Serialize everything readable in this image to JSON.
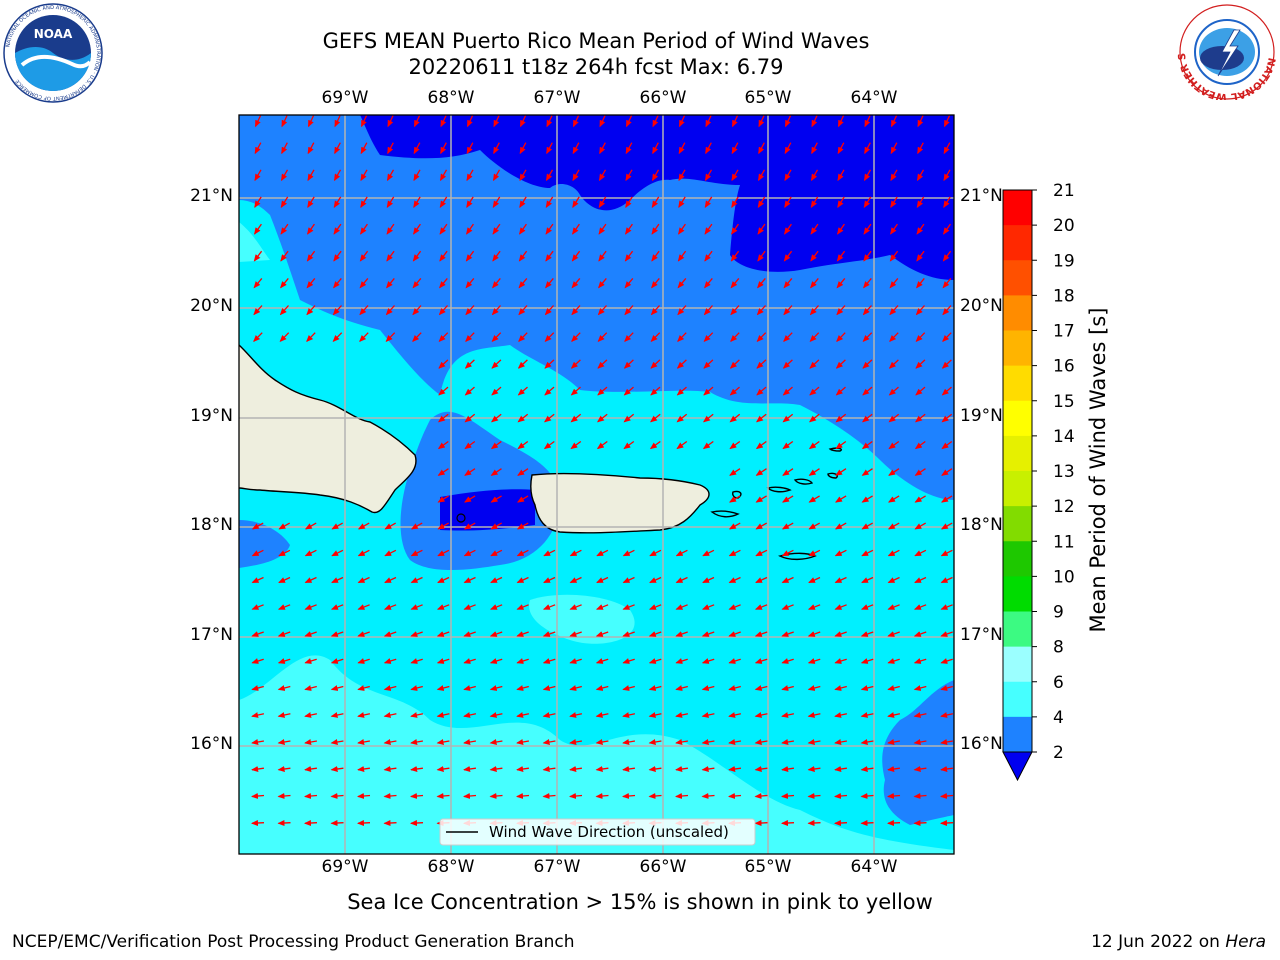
{
  "header": {
    "title_line1": "GEFS MEAN Puerto Rico Mean Period of Wind Waves",
    "title_line2": "20220611 t18z 264h fcst   Max: 6.79"
  },
  "logos": {
    "noaa_text": "NOAA",
    "noaa_ring_text": "NATIONAL OCEANIC AND ATMOSPHERIC ADMINISTRATION · U.S. DEPARTMENT OF COMMERCE",
    "nws_ring_text": "NATIONAL WEATHER SERVICE"
  },
  "map": {
    "lon_labels": [
      "69°W",
      "68°W",
      "67°W",
      "66°W",
      "65°W",
      "64°W"
    ],
    "lat_labels": [
      "21°N",
      "20°N",
      "19°N",
      "18°N",
      "17°N",
      "16°N"
    ],
    "legend_label": "Wind Wave Direction (unscaled)",
    "colors": {
      "band_2_4": "#1e82ff",
      "band_4_6": "#00f0ff",
      "band_6_8": "#46ffff",
      "band_lt2": "#0000f0",
      "land": "#eeeede",
      "arrow": "#ff0000",
      "grid": "#b4b4b4"
    }
  },
  "colorbar": {
    "label": "Mean Period of Wind Waves [s]",
    "ticks": [
      "2",
      "4",
      "6",
      "8",
      "9",
      "10",
      "11",
      "12",
      "13",
      "14",
      "15",
      "16",
      "17",
      "18",
      "19",
      "20",
      "21"
    ],
    "colors": [
      "#1e82ff",
      "#00f0ff",
      "#46ffff",
      "#9bffff",
      "#3cfa82",
      "#00dc00",
      "#1ec800",
      "#82dc00",
      "#c8f000",
      "#e6f000",
      "#ffff00",
      "#ffdc00",
      "#ffb400",
      "#ff8c00",
      "#ff5000",
      "#ff2800",
      "#ff0000"
    ],
    "under_color": "#0000f0"
  },
  "footer": {
    "sea_ice_note": "Sea Ice Concentration > 15% is shown in pink to yellow",
    "left": "NCEP/EMC/Verification Post Processing Product Generation Branch",
    "right_prefix": "12 Jun 2022 on ",
    "right_machine": "Hera"
  }
}
